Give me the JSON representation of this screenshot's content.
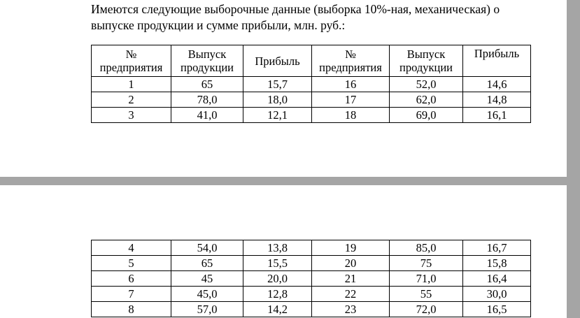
{
  "text": {
    "lines": [
      "Имеются следующие выборочные данные (выборка 10%-ная, механическая) о",
      "выпуске продукции и сумме прибыли, млн. руб.:"
    ]
  },
  "table1": {
    "header": [
      [
        "№",
        "предприятия"
      ],
      [
        "Выпуск",
        "продукции"
      ],
      [
        "Прибыль"
      ],
      [
        "№",
        "предприятия"
      ],
      [
        "Выпуск",
        "продукции"
      ],
      [
        "Прибыль"
      ]
    ],
    "rows": [
      [
        "1",
        "65",
        "15,7",
        "16",
        "52,0",
        "14,6"
      ],
      [
        "2",
        "78,0",
        "18,0",
        "17",
        "62,0",
        "14,8"
      ],
      [
        "3",
        "41,0",
        "12,1",
        "18",
        "69,0",
        "16,1"
      ]
    ]
  },
  "table2": {
    "rows": [
      [
        "4",
        "54,0",
        "13,8",
        "19",
        "85,0",
        "16,7"
      ],
      [
        "5",
        "65",
        "15,5",
        "20",
        "75",
        "15,8"
      ],
      [
        "6",
        "45",
        "20,0",
        "21",
        "71,0",
        "16,4"
      ],
      [
        "7",
        "45,0",
        "12,8",
        "22",
        "55",
        "30,0"
      ],
      [
        "8",
        "57,0",
        "14,2",
        "23",
        "72,0",
        "16,5"
      ]
    ]
  }
}
